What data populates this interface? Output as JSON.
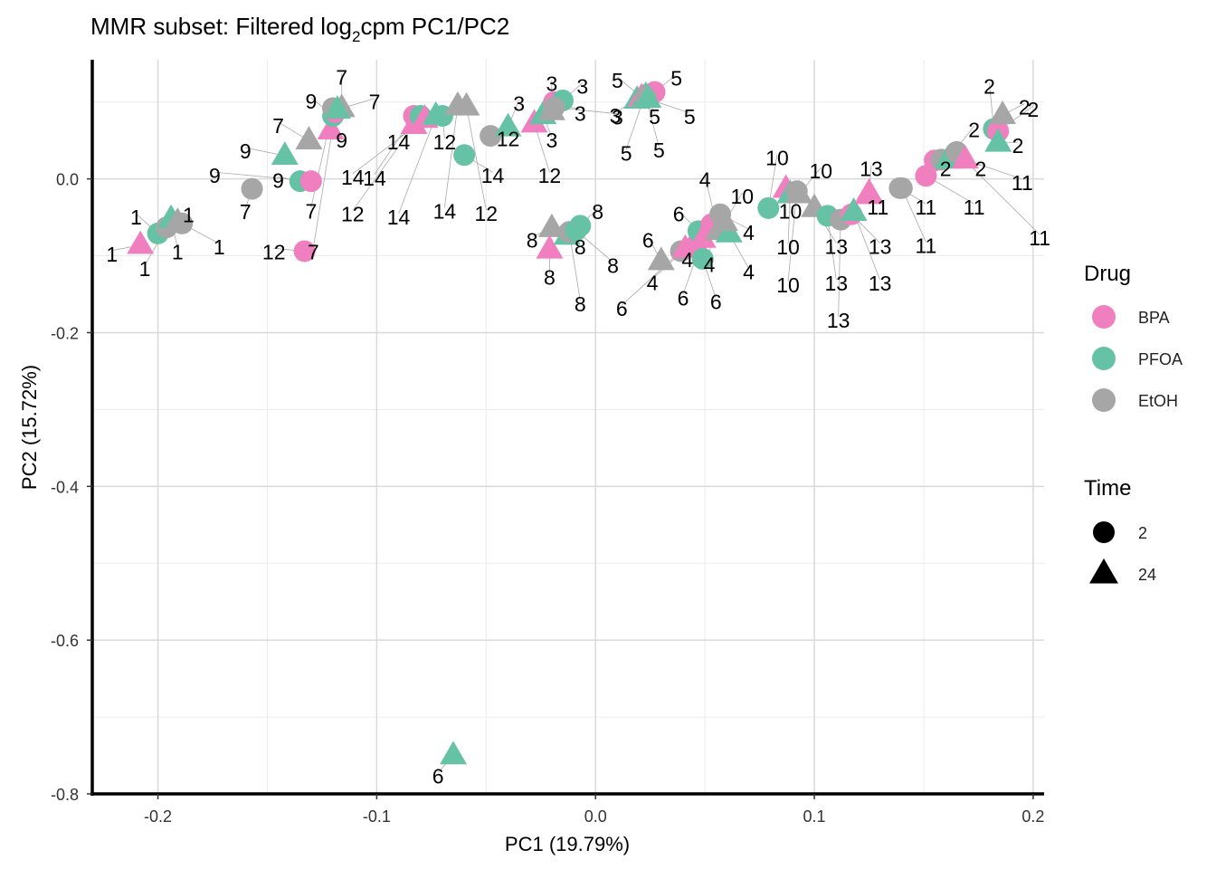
{
  "chart_data": {
    "type": "scatter",
    "title_main": "MMR subset: Filtered log",
    "title_sub": "2",
    "title_end": "cpm PC1/PC2",
    "xlabel": "PC1 (19.79%)",
    "ylabel": "PC2 (15.72%)",
    "xlim": [
      -0.23,
      0.205
    ],
    "ylim": [
      -0.8,
      0.155
    ],
    "xticks": [
      -0.2,
      -0.1,
      0.0,
      0.1,
      0.2
    ],
    "xtick_labels": [
      "-0.2",
      "-0.1",
      "0.0",
      "0.1",
      "0.2"
    ],
    "yticks": [
      0.0,
      -0.2,
      -0.4,
      -0.6,
      -0.8
    ],
    "ytick_labels": [
      "0.0",
      "-0.2",
      "-0.4",
      "-0.6",
      "-0.8"
    ],
    "grid": true,
    "legend_position": "right",
    "legend_drug_title": "Drug",
    "legend_time_title": "Time",
    "drugs": [
      {
        "name": "BPA",
        "color": "#f07fbf"
      },
      {
        "name": "PFOA",
        "color": "#66c2a5"
      },
      {
        "name": "EtOH",
        "color": "#a6a6a6"
      }
    ],
    "times": [
      {
        "name": "2",
        "shape": "circle"
      },
      {
        "name": "24",
        "shape": "triangle"
      }
    ],
    "points": [
      {
        "x": -0.208,
        "y": -0.086,
        "drug": "BPA",
        "time": "24",
        "label": "1",
        "lx": -0.221,
        "ly": -0.098
      },
      {
        "x": -0.2,
        "y": -0.071,
        "drug": "PFOA",
        "time": "2",
        "label": "1",
        "lx": -0.21,
        "ly": -0.05
      },
      {
        "x": -0.196,
        "y": -0.063,
        "drug": "EtOH",
        "time": "2",
        "label": "1",
        "lx": -0.206,
        "ly": -0.117
      },
      {
        "x": -0.194,
        "y": -0.052,
        "drug": "PFOA",
        "time": "24",
        "label": "1",
        "lx": -0.191,
        "ly": -0.095
      },
      {
        "x": -0.191,
        "y": -0.056,
        "drug": "EtOH",
        "time": "24",
        "label": "1",
        "lx": -0.186,
        "ly": -0.047
      },
      {
        "x": -0.189,
        "y": -0.058,
        "drug": "EtOH",
        "time": "2",
        "label": "1",
        "lx": -0.172,
        "ly": -0.089
      },
      {
        "x": -0.157,
        "y": -0.013,
        "drug": "EtOH",
        "time": "2",
        "label": "7",
        "lx": -0.16,
        "ly": -0.043
      },
      {
        "x": -0.142,
        "y": 0.03,
        "drug": "PFOA",
        "time": "24",
        "label": "9",
        "lx": -0.16,
        "ly": 0.036
      },
      {
        "x": -0.135,
        "y": -0.003,
        "drug": "PFOA",
        "time": "2",
        "label": "9",
        "lx": -0.145,
        "ly": -0.002
      },
      {
        "x": -0.133,
        "y": -0.094,
        "drug": "BPA",
        "time": "2",
        "label": "12",
        "lx": -0.147,
        "ly": -0.095
      },
      {
        "x": -0.13,
        "y": -0.003,
        "drug": "BPA",
        "time": "2",
        "label": "9",
        "lx": -0.174,
        "ly": 0.004
      },
      {
        "x": -0.131,
        "y": 0.05,
        "drug": "EtOH",
        "time": "24",
        "label": "7",
        "lx": -0.145,
        "ly": 0.069
      },
      {
        "x": -0.121,
        "y": 0.063,
        "drug": "BPA",
        "time": "24",
        "label": "9",
        "lx": -0.116,
        "ly": 0.05
      },
      {
        "x": -0.12,
        "y": 0.082,
        "drug": "PFOA",
        "time": "2",
        "label": "9",
        "lx": -0.13,
        "ly": 0.101
      },
      {
        "x": -0.119,
        "y": 0.087,
        "drug": "BPA",
        "time": "2",
        "label": "7",
        "lx": -0.129,
        "ly": -0.095
      },
      {
        "x": -0.12,
        "y": 0.092,
        "drug": "EtOH",
        "time": "2",
        "label": "7",
        "lx": -0.13,
        "ly": -0.042
      },
      {
        "x": -0.116,
        "y": 0.092,
        "drug": "EtOH",
        "time": "24",
        "label": "7",
        "lx": -0.116,
        "ly": 0.132
      },
      {
        "x": -0.118,
        "y": 0.09,
        "drug": "PFOA",
        "time": "24",
        "label": "7",
        "lx": -0.101,
        "ly": 0.1
      },
      {
        "x": -0.083,
        "y": 0.082,
        "drug": "BPA",
        "time": "2",
        "label": "14",
        "lx": -0.101,
        "ly": 0.001
      },
      {
        "x": -0.083,
        "y": 0.07,
        "drug": "BPA",
        "time": "24",
        "label": "14",
        "lx": -0.09,
        "ly": 0.048
      },
      {
        "x": -0.08,
        "y": 0.082,
        "drug": "PFOA",
        "time": "2",
        "label": "12",
        "lx": -0.111,
        "ly": -0.046
      },
      {
        "x": -0.078,
        "y": 0.078,
        "drug": "BPA",
        "time": "24",
        "label": "14",
        "lx": -0.111,
        "ly": 0.002
      },
      {
        "x": -0.073,
        "y": 0.082,
        "drug": "PFOA",
        "time": "24",
        "label": "14",
        "lx": -0.09,
        "ly": -0.05
      },
      {
        "x": -0.07,
        "y": 0.082,
        "drug": "PFOA",
        "time": "2",
        "label": "12",
        "lx": -0.069,
        "ly": 0.048
      },
      {
        "x": -0.063,
        "y": 0.095,
        "drug": "EtOH",
        "time": "24",
        "label": "14",
        "lx": -0.069,
        "ly": -0.042
      },
      {
        "x": -0.059,
        "y": 0.094,
        "drug": "EtOH",
        "time": "24",
        "label": "12",
        "lx": -0.05,
        "ly": -0.045
      },
      {
        "x": -0.06,
        "y": 0.031,
        "drug": "PFOA",
        "time": "2",
        "label": "14",
        "lx": -0.047,
        "ly": 0.004
      },
      {
        "x": -0.048,
        "y": 0.056,
        "drug": "EtOH",
        "time": "2",
        "label": "12",
        "lx": -0.04,
        "ly": 0.052
      },
      {
        "x": -0.04,
        "y": 0.067,
        "drug": "PFOA",
        "time": "24",
        "label": "3",
        "lx": -0.035,
        "ly": 0.098
      },
      {
        "x": -0.028,
        "y": 0.072,
        "drug": "BPA",
        "time": "24",
        "label": "12",
        "lx": -0.021,
        "ly": 0.004
      },
      {
        "x": -0.024,
        "y": 0.083,
        "drug": "PFOA",
        "time": "24",
        "label": "3",
        "lx": -0.02,
        "ly": 0.05
      },
      {
        "x": -0.02,
        "y": 0.088,
        "drug": "EtOH",
        "time": "24",
        "label": "3",
        "lx": -0.02,
        "ly": 0.124
      },
      {
        "x": -0.019,
        "y": 0.1,
        "drug": "BPA",
        "time": "2",
        "label": "3",
        "lx": -0.007,
        "ly": 0.085
      },
      {
        "x": -0.015,
        "y": 0.102,
        "drug": "PFOA",
        "time": "2",
        "label": "3",
        "lx": -0.006,
        "ly": 0.12
      },
      {
        "x": -0.019,
        "y": 0.093,
        "drug": "EtOH",
        "time": "2",
        "label": "3",
        "lx": 0.01,
        "ly": 0.08
      },
      {
        "x": -0.02,
        "y": -0.064,
        "drug": "EtOH",
        "time": "24",
        "label": "8",
        "lx": -0.029,
        "ly": -0.08
      },
      {
        "x": -0.021,
        "y": -0.092,
        "drug": "BPA",
        "time": "24",
        "label": "8",
        "lx": -0.021,
        "ly": -0.128
      },
      {
        "x": -0.013,
        "y": -0.074,
        "drug": "PFOA",
        "time": "24",
        "label": "8",
        "lx": -0.007,
        "ly": -0.089
      },
      {
        "x": -0.012,
        "y": -0.069,
        "drug": "EtOH",
        "time": "2",
        "label": "8",
        "lx": -0.007,
        "ly": -0.163
      },
      {
        "x": -0.007,
        "y": -0.061,
        "drug": "PFOA",
        "time": "2",
        "label": "8",
        "lx": 0.001,
        "ly": -0.043
      },
      {
        "x": -0.009,
        "y": -0.067,
        "drug": "PFOA",
        "time": "2",
        "label": "8",
        "lx": 0.008,
        "ly": -0.113
      },
      {
        "x": 0.019,
        "y": 0.103,
        "drug": "PFOA",
        "time": "24",
        "label": "3",
        "lx": 0.009,
        "ly": 0.082
      },
      {
        "x": 0.021,
        "y": 0.106,
        "drug": "BPA",
        "time": "24",
        "label": "5",
        "lx": 0.01,
        "ly": 0.128
      },
      {
        "x": 0.022,
        "y": 0.105,
        "drug": "EtOH",
        "time": "24",
        "label": "5",
        "lx": 0.014,
        "ly": 0.033
      },
      {
        "x": 0.027,
        "y": 0.113,
        "drug": "BPA",
        "time": "2",
        "label": "5",
        "lx": 0.037,
        "ly": 0.131
      },
      {
        "x": 0.023,
        "y": 0.108,
        "drug": "PFOA",
        "time": "24",
        "label": "5",
        "lx": 0.027,
        "ly": 0.081
      },
      {
        "x": 0.023,
        "y": 0.106,
        "drug": "EtOH",
        "time": "2",
        "label": "5",
        "lx": 0.029,
        "ly": 0.037
      },
      {
        "x": 0.024,
        "y": 0.104,
        "drug": "PFOA",
        "time": "24",
        "label": "5",
        "lx": 0.043,
        "ly": 0.081
      },
      {
        "x": 0.03,
        "y": -0.107,
        "drug": "EtOH",
        "time": "24",
        "label": "6",
        "lx": 0.024,
        "ly": -0.08
      },
      {
        "x": 0.039,
        "y": -0.094,
        "drug": "EtOH",
        "time": "2",
        "label": "6",
        "lx": 0.012,
        "ly": -0.169
      },
      {
        "x": 0.041,
        "y": -0.091,
        "drug": "BPA",
        "time": "24",
        "label": "4",
        "lx": 0.026,
        "ly": -0.135
      },
      {
        "x": 0.046,
        "y": -0.086,
        "drug": "BPA",
        "time": "2",
        "label": "4",
        "lx": 0.042,
        "ly": -0.105
      },
      {
        "x": 0.047,
        "y": -0.068,
        "drug": "PFOA",
        "time": "2",
        "label": "6",
        "lx": 0.038,
        "ly": -0.046
      },
      {
        "x": 0.049,
        "y": -0.078,
        "drug": "BPA",
        "time": "24",
        "label": "6",
        "lx": 0.04,
        "ly": -0.155
      },
      {
        "x": 0.049,
        "y": -0.104,
        "drug": "PFOA",
        "time": "2",
        "label": "6",
        "lx": 0.055,
        "ly": -0.16
      },
      {
        "x": 0.053,
        "y": -0.059,
        "drug": "BPA",
        "time": "2",
        "label": "4",
        "lx": 0.052,
        "ly": -0.112
      },
      {
        "x": 0.056,
        "y": -0.068,
        "drug": "EtOH",
        "time": "24",
        "label": "4",
        "lx": 0.05,
        "ly": -0.001
      },
      {
        "x": 0.057,
        "y": -0.046,
        "drug": "EtOH",
        "time": "2",
        "label": "4",
        "lx": 0.07,
        "ly": -0.07
      },
      {
        "x": 0.061,
        "y": -0.071,
        "drug": "PFOA",
        "time": "24",
        "label": "4",
        "lx": 0.07,
        "ly": -0.121
      },
      {
        "x": 0.059,
        "y": -0.056,
        "drug": "EtOH",
        "time": "24",
        "label": "10",
        "lx": 0.067,
        "ly": -0.023
      },
      {
        "x": 0.079,
        "y": -0.038,
        "drug": "PFOA",
        "time": "2",
        "label": "10",
        "lx": 0.083,
        "ly": 0.027
      },
      {
        "x": 0.087,
        "y": -0.013,
        "drug": "BPA",
        "time": "24",
        "label": "10",
        "lx": 0.089,
        "ly": -0.042
      },
      {
        "x": 0.089,
        "y": -0.02,
        "drug": "PFOA",
        "time": "24",
        "label": "10",
        "lx": 0.088,
        "ly": -0.089
      },
      {
        "x": 0.092,
        "y": -0.016,
        "drug": "EtOH",
        "time": "2",
        "label": "10",
        "lx": 0.088,
        "ly": -0.138
      },
      {
        "x": 0.093,
        "y": -0.02,
        "drug": "EtOH",
        "time": "24",
        "label": "10",
        "lx": 0.103,
        "ly": 0.01
      },
      {
        "x": 0.1,
        "y": -0.038,
        "drug": "EtOH",
        "time": "24",
        "label": "13",
        "lx": 0.11,
        "ly": -0.088
      },
      {
        "x": 0.106,
        "y": -0.048,
        "drug": "PFOA",
        "time": "2",
        "label": "13",
        "lx": 0.11,
        "ly": -0.136
      },
      {
        "x": 0.112,
        "y": -0.053,
        "drug": "EtOH",
        "time": "2",
        "label": "13",
        "lx": 0.111,
        "ly": -0.184
      },
      {
        "x": 0.117,
        "y": -0.046,
        "drug": "BPA",
        "time": "2",
        "label": "13",
        "lx": 0.13,
        "ly": -0.088
      },
      {
        "x": 0.118,
        "y": -0.043,
        "drug": "PFOA",
        "time": "24",
        "label": "13",
        "lx": 0.13,
        "ly": -0.136
      },
      {
        "x": 0.125,
        "y": -0.021,
        "drug": "BPA",
        "time": "24",
        "label": "13",
        "lx": 0.126,
        "ly": 0.013
      },
      {
        "x": 0.125,
        "y": -0.018,
        "drug": "BPA",
        "time": "24",
        "label": "11",
        "lx": 0.129,
        "ly": -0.037
      },
      {
        "x": 0.139,
        "y": -0.012,
        "drug": "EtOH",
        "time": "2",
        "label": "11",
        "lx": 0.151,
        "ly": -0.037
      },
      {
        "x": 0.14,
        "y": -0.012,
        "drug": "EtOH",
        "time": "2",
        "label": "11",
        "lx": 0.151,
        "ly": -0.087
      },
      {
        "x": 0.151,
        "y": 0.004,
        "drug": "BPA",
        "time": "2",
        "label": "11",
        "lx": 0.173,
        "ly": -0.037
      },
      {
        "x": 0.155,
        "y": 0.024,
        "drug": "BPA",
        "time": "2",
        "label": "2",
        "lx": 0.16,
        "ly": 0.013
      },
      {
        "x": 0.158,
        "y": 0.025,
        "drug": "EtOH",
        "time": "2",
        "label": "2",
        "lx": 0.176,
        "ly": 0.013
      },
      {
        "x": 0.161,
        "y": 0.025,
        "drug": "PFOA",
        "time": "24",
        "label": "2",
        "lx": 0.173,
        "ly": 0.064
      },
      {
        "x": 0.165,
        "y": 0.035,
        "drug": "EtOH",
        "time": "2",
        "label": "11",
        "lx": 0.203,
        "ly": -0.077
      },
      {
        "x": 0.169,
        "y": 0.025,
        "drug": "BPA",
        "time": "24",
        "label": "11",
        "lx": 0.195,
        "ly": -0.005
      },
      {
        "x": 0.182,
        "y": 0.065,
        "drug": "PFOA",
        "time": "2",
        "label": "2",
        "lx": 0.18,
        "ly": 0.12
      },
      {
        "x": 0.184,
        "y": 0.062,
        "drug": "BPA",
        "time": "2",
        "label": "2",
        "lx": 0.2,
        "ly": 0.09
      },
      {
        "x": 0.184,
        "y": 0.047,
        "drug": "PFOA",
        "time": "24",
        "label": "2",
        "lx": 0.193,
        "ly": 0.043
      },
      {
        "x": 0.186,
        "y": 0.083,
        "drug": "EtOH",
        "time": "24",
        "label": "2",
        "lx": 0.196,
        "ly": 0.093
      },
      {
        "x": -0.065,
        "y": -0.75,
        "drug": "PFOA",
        "time": "24",
        "label": "6",
        "lx": -0.072,
        "ly": -0.777
      }
    ]
  }
}
